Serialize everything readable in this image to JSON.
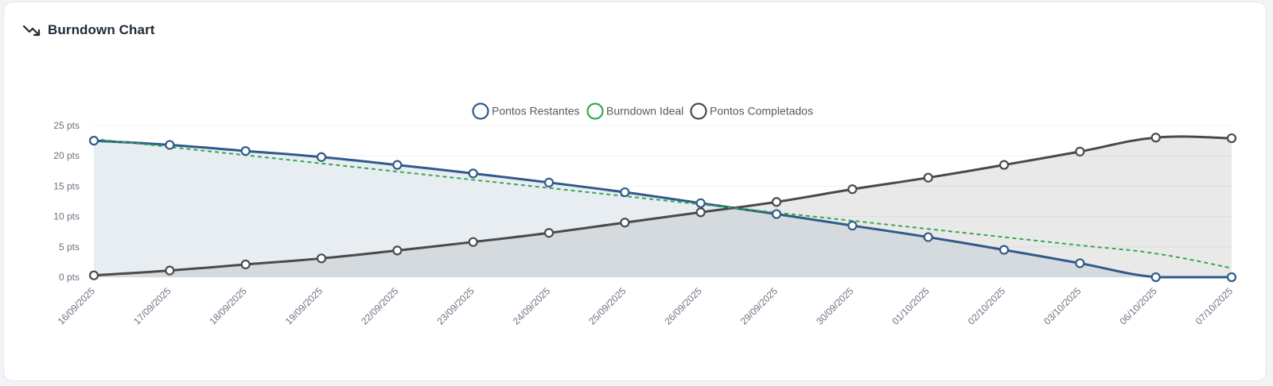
{
  "card": {
    "title": "Burndown Chart",
    "icon": "trending-down-icon"
  },
  "chart_data": {
    "type": "line",
    "x": [
      "16/09/2025",
      "17/09/2025",
      "18/09/2025",
      "19/09/2025",
      "22/09/2025",
      "23/09/2025",
      "24/09/2025",
      "25/09/2025",
      "26/09/2025",
      "29/09/2025",
      "30/09/2025",
      "01/10/2025",
      "02/10/2025",
      "03/10/2025",
      "06/10/2025",
      "07/10/2025"
    ],
    "ylim": [
      0,
      25
    ],
    "yticks": [
      0,
      5,
      10,
      15,
      20,
      25
    ],
    "ytick_suffix": " pts",
    "grid": true,
    "legend_position": "top-center",
    "series": [
      {
        "name": "Pontos Restantes",
        "color": "#2f5a8a",
        "fill": "#e8edf2",
        "style": "solid",
        "markers": true,
        "values": [
          22.5,
          21.8,
          20.8,
          19.8,
          18.5,
          17.1,
          15.6,
          14.0,
          12.2,
          10.4,
          8.5,
          6.6,
          4.5,
          2.3,
          0,
          0
        ]
      },
      {
        "name": "Burndown Ideal",
        "color": "#34a853",
        "fill": null,
        "style": "dashed",
        "markers": false,
        "values": [
          22.8,
          21.45,
          20.1,
          18.75,
          17.4,
          16.05,
          14.7,
          13.35,
          12.0,
          10.65,
          9.3,
          7.95,
          6.6,
          5.25,
          3.9,
          1.5
        ]
      },
      {
        "name": "Pontos Completados",
        "color": "#4a4a4a",
        "fill": "rgba(120,120,120,0.16)",
        "style": "solid",
        "markers": true,
        "values": [
          0.3,
          1.1,
          2.1,
          3.1,
          4.4,
          5.8,
          7.3,
          9.0,
          10.7,
          12.4,
          14.5,
          16.4,
          18.5,
          20.7,
          23.0,
          22.9
        ]
      }
    ]
  }
}
